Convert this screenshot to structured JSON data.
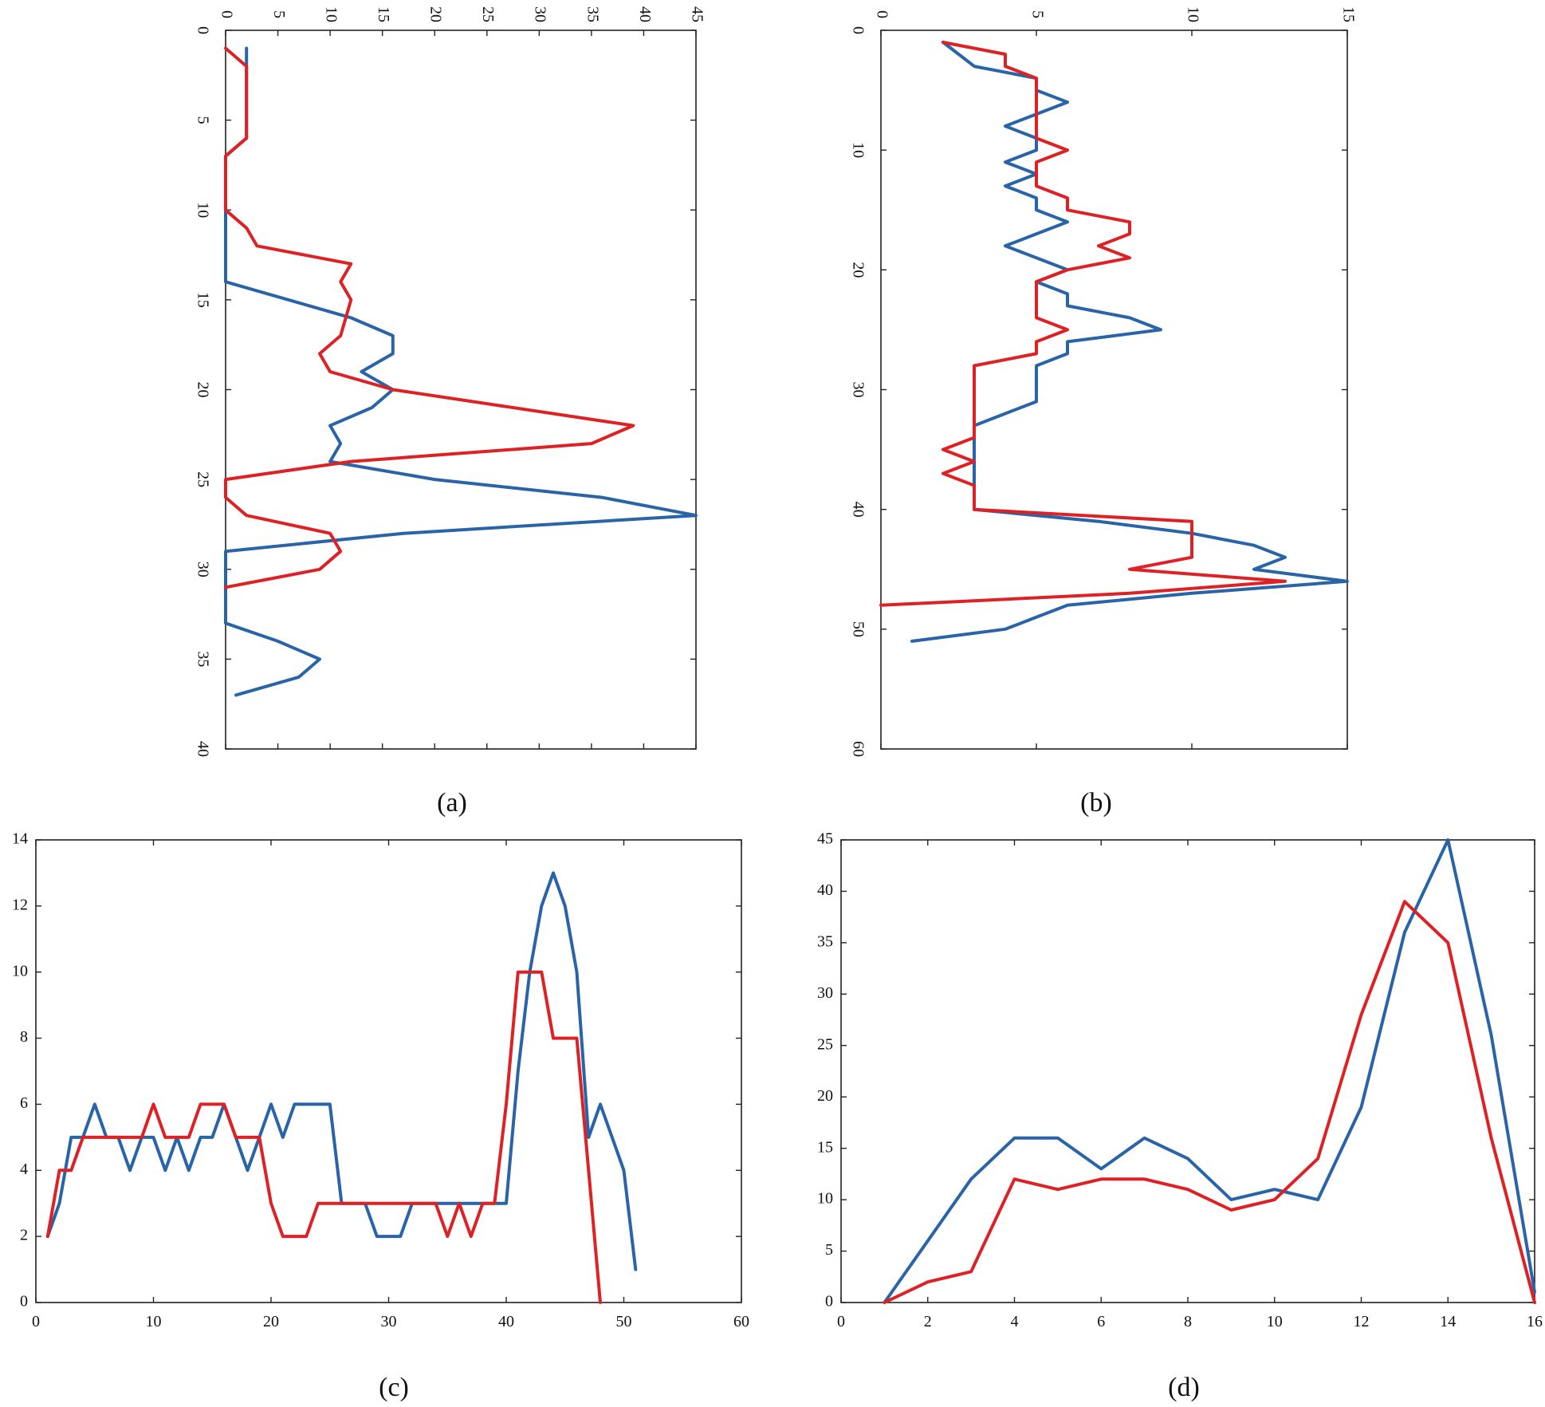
{
  "colors": {
    "blue": "#2a64a8",
    "red": "#dd2124"
  },
  "chart_data": [
    {
      "id": "a",
      "caption": "(a)",
      "type": "line",
      "orientation": "rotated-90-clockwise",
      "xlim": [
        0,
        40
      ],
      "ylim": [
        0,
        45
      ],
      "xticks": [
        0,
        5,
        10,
        15,
        20,
        25,
        30,
        35,
        40
      ],
      "yticks": [
        0,
        5,
        10,
        15,
        20,
        25,
        30,
        35,
        40,
        45
      ],
      "series": [
        {
          "name": "blue",
          "color": "#2a64a8",
          "x": [
            1,
            6,
            7,
            10,
            14,
            16,
            17,
            18,
            19,
            20,
            21,
            22,
            23,
            24,
            25,
            26,
            27,
            28,
            29,
            31,
            33,
            34,
            35,
            36,
            37
          ],
          "y": [
            2,
            2,
            0,
            0,
            0,
            12,
            16,
            16,
            13,
            16,
            14,
            10,
            11,
            10,
            20,
            36,
            45,
            17,
            0,
            0,
            0,
            5,
            9,
            7,
            1
          ]
        },
        {
          "name": "red",
          "color": "#dd2124",
          "x": [
            1,
            2,
            6,
            7,
            10,
            11,
            12,
            13,
            14,
            15,
            17,
            18,
            19,
            20,
            22,
            23,
            24,
            25,
            26,
            27,
            28,
            29,
            30,
            31
          ],
          "y": [
            0,
            2,
            2,
            0,
            0,
            2,
            3,
            12,
            11,
            12,
            11,
            9,
            10,
            16,
            39,
            35,
            12,
            0,
            0,
            2,
            10,
            11,
            9,
            0
          ]
        }
      ]
    },
    {
      "id": "b",
      "caption": "(b)",
      "type": "line",
      "orientation": "rotated-90-clockwise",
      "xlim": [
        0,
        60
      ],
      "ylim": [
        0,
        15
      ],
      "xticks": [
        0,
        10,
        20,
        30,
        40,
        50,
        60
      ],
      "yticks": [
        0,
        5,
        10,
        15
      ],
      "series": [
        {
          "name": "blue",
          "color": "#2a64a8",
          "x": [
            1,
            2,
            3,
            4,
            5,
            6,
            7,
            8,
            9,
            10,
            11,
            12,
            13,
            14,
            15,
            16,
            17,
            18,
            19,
            20,
            21,
            22,
            23,
            24,
            25,
            26,
            27,
            28,
            29,
            30,
            31,
            32,
            33,
            34,
            35,
            36,
            37,
            38,
            39,
            40,
            41,
            42,
            43,
            44,
            45,
            46,
            47,
            48,
            49,
            50,
            51
          ],
          "y": [
            2,
            2.5,
            3,
            5,
            5,
            6,
            5,
            4,
            5,
            5,
            4,
            5,
            4,
            5,
            5,
            6,
            5,
            4,
            5,
            6,
            5,
            6,
            6,
            8,
            9,
            6,
            6,
            5,
            5,
            5,
            5,
            4,
            3,
            3,
            3,
            3,
            3,
            3,
            3,
            3,
            7,
            10,
            12,
            13,
            12,
            15,
            10,
            6,
            5,
            4,
            1
          ]
        },
        {
          "name": "red",
          "color": "#dd2124",
          "x": [
            1,
            2,
            3,
            4,
            5,
            6,
            7,
            8,
            9,
            10,
            11,
            12,
            13,
            14,
            15,
            16,
            17,
            18,
            19,
            20,
            21,
            22,
            23,
            24,
            25,
            26,
            27,
            28,
            29,
            30,
            31,
            32,
            33,
            34,
            35,
            36,
            37,
            38,
            39,
            40,
            41,
            42,
            43,
            44,
            45,
            46,
            47,
            48
          ],
          "y": [
            2,
            4,
            4,
            5,
            5,
            5,
            5,
            5,
            5,
            6,
            5,
            5,
            5,
            6,
            6,
            8,
            8,
            7,
            8,
            6,
            5,
            5,
            5,
            5,
            6,
            5,
            5,
            3,
            3,
            3,
            3,
            3,
            3,
            3,
            2,
            3,
            2,
            3,
            3,
            3,
            10,
            10,
            10,
            10,
            8,
            13,
            8,
            0
          ]
        }
      ]
    },
    {
      "id": "c",
      "caption": "(c)",
      "type": "line",
      "xlim": [
        0,
        60
      ],
      "ylim": [
        0,
        14
      ],
      "xticks": [
        0,
        10,
        20,
        30,
        40,
        50,
        60
      ],
      "yticks": [
        0,
        2,
        4,
        6,
        8,
        10,
        12,
        14
      ],
      "series": [
        {
          "name": "blue",
          "color": "#2a64a8",
          "x": [
            1,
            2,
            3,
            4,
            5,
            6,
            7,
            8,
            9,
            10,
            11,
            12,
            13,
            14,
            15,
            16,
            17,
            18,
            19,
            20,
            21,
            22,
            23,
            24,
            25,
            26,
            27,
            28,
            29,
            30,
            31,
            32,
            33,
            34,
            35,
            36,
            37,
            38,
            39,
            40,
            41,
            42,
            43,
            44,
            45,
            46,
            47,
            48,
            49,
            50,
            51
          ],
          "y": [
            2,
            3,
            5,
            5,
            6,
            5,
            5,
            4,
            5,
            5,
            4,
            5,
            4,
            5,
            5,
            6,
            5,
            4,
            5,
            6,
            5,
            6,
            6,
            6,
            6,
            3,
            3,
            3,
            2,
            2,
            2,
            3,
            3,
            3,
            3,
            3,
            3,
            3,
            3,
            3,
            7,
            10,
            12,
            13,
            12,
            10,
            5,
            6,
            5,
            4,
            1
          ]
        },
        {
          "name": "red",
          "color": "#dd2124",
          "x": [
            1,
            2,
            3,
            4,
            5,
            6,
            7,
            8,
            9,
            10,
            11,
            12,
            13,
            14,
            15,
            16,
            17,
            18,
            19,
            20,
            21,
            22,
            23,
            24,
            25,
            26,
            27,
            28,
            29,
            30,
            31,
            32,
            33,
            34,
            35,
            36,
            37,
            38,
            39,
            40,
            41,
            42,
            43,
            44,
            45,
            46,
            47,
            48
          ],
          "y": [
            2,
            4,
            4,
            5,
            5,
            5,
            5,
            5,
            5,
            6,
            5,
            5,
            5,
            6,
            6,
            6,
            5,
            5,
            5,
            3,
            2,
            2,
            2,
            3,
            3,
            3,
            3,
            3,
            3,
            3,
            3,
            3,
            3,
            3,
            2,
            3,
            2,
            3,
            3,
            6,
            10,
            10,
            10,
            8,
            8,
            8,
            4,
            0
          ]
        }
      ]
    },
    {
      "id": "d",
      "caption": "(d)",
      "type": "line",
      "xlim": [
        0,
        16
      ],
      "ylim": [
        0,
        45
      ],
      "xticks": [
        0,
        2,
        4,
        6,
        8,
        10,
        12,
        14,
        16
      ],
      "yticks": [
        0,
        5,
        10,
        15,
        20,
        25,
        30,
        35,
        40,
        45
      ],
      "series": [
        {
          "name": "blue",
          "color": "#2a64a8",
          "x": [
            1,
            2,
            3,
            4,
            5,
            6,
            7,
            8,
            9,
            10,
            11,
            12,
            13,
            14,
            15,
            16
          ],
          "y": [
            0,
            6,
            12,
            16,
            16,
            13,
            16,
            14,
            10,
            11,
            10,
            19,
            36,
            45,
            26,
            1
          ]
        },
        {
          "name": "red",
          "color": "#dd2124",
          "x": [
            1,
            2,
            3,
            4,
            5,
            6,
            7,
            8,
            9,
            10,
            11,
            12,
            13,
            14,
            15,
            16
          ],
          "y": [
            0,
            2,
            3,
            12,
            11,
            12,
            12,
            11,
            9,
            10,
            14,
            28,
            39,
            35,
            16,
            0
          ]
        }
      ]
    }
  ]
}
